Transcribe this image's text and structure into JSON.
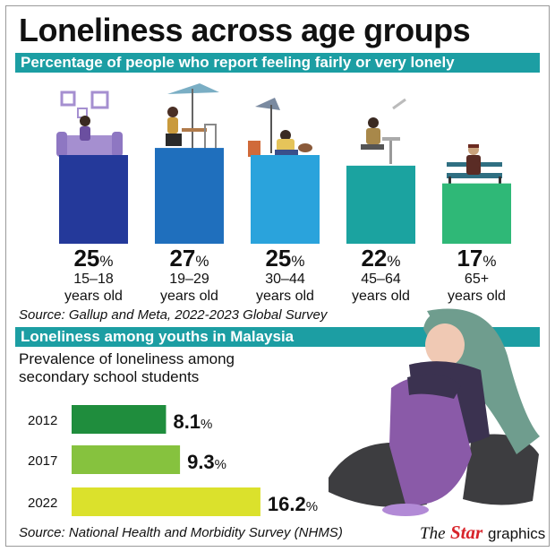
{
  "title": "Loneliness across age groups",
  "section1": {
    "heading": "Percentage of people who report feeling fairly or very lonely",
    "source": "Source: Gallup and Meta, 2022-2023 Global Survey"
  },
  "section2": {
    "heading": "Loneliness among youths in Malaysia",
    "subtitle_line1": "Prevalence of loneliness among",
    "subtitle_line2": "secondary school students",
    "source": "Source: National Health and Morbidity Survey (NHMS)"
  },
  "logo": {
    "the": "The",
    "star": "Star",
    "graphics": "graphics"
  },
  "colors": {
    "band": "#1c9ea3",
    "bars_age": [
      "#24399a",
      "#1f6fbd",
      "#2aa3dc",
      "#1ba3a0",
      "#2fb877"
    ],
    "bars_year": [
      "#1f8d3d",
      "#86c23e",
      "#dbe12c"
    ],
    "sofa": "#a58fd0",
    "girl_hair": "#6f9d8e",
    "girl_clothes": "#7a4a97"
  },
  "icons": [
    "sofa-girl-illustration",
    "cafe-woman-illustration",
    "dog-man-illustration",
    "desk-man-illustration",
    "bench-elderly-illustration",
    "lonely-girl-illustration"
  ],
  "chart_data": [
    {
      "type": "bar",
      "categories": [
        "15–18 years old",
        "19–29 years old",
        "30–44 years old",
        "45–64 years old",
        "65+ years old"
      ],
      "labels_line1": [
        "15–18",
        "19–29",
        "30–44",
        "45–64",
        "65+"
      ],
      "labels_line2": [
        "years old",
        "years old",
        "years old",
        "years old",
        "years old"
      ],
      "values": [
        25,
        27,
        25,
        22,
        17
      ],
      "unit": "%"
    },
    {
      "type": "bar",
      "orientation": "horizontal",
      "categories": [
        "2012",
        "2017",
        "2022"
      ],
      "values": [
        8.1,
        9.3,
        16.2
      ],
      "unit": "%"
    }
  ]
}
